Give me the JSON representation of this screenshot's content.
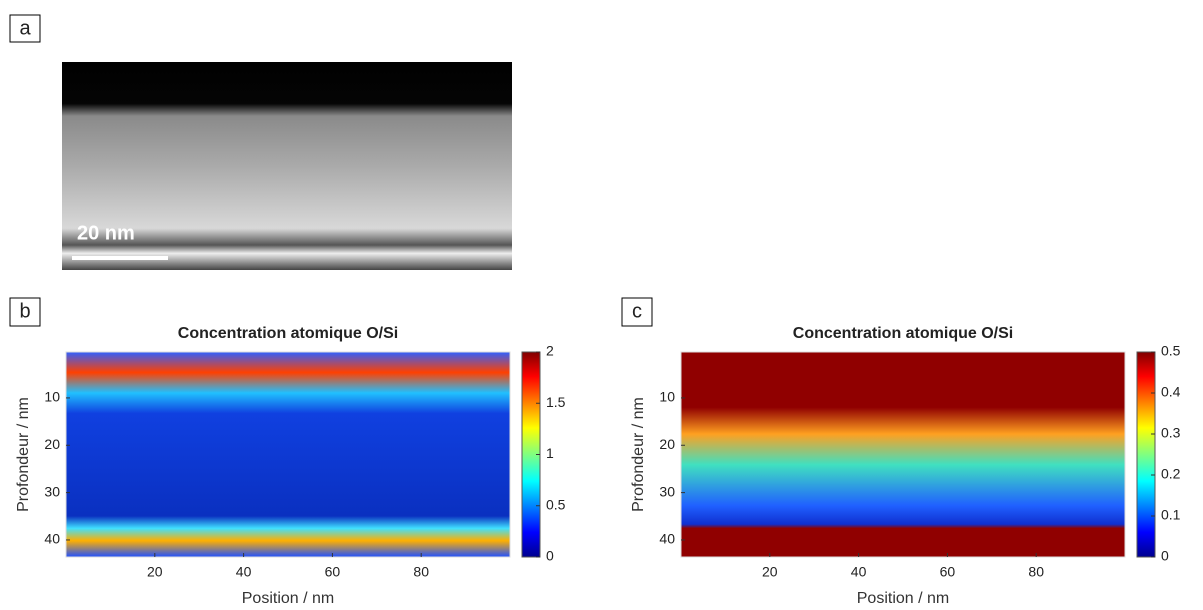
{
  "panels": [
    "a",
    "b",
    "c"
  ],
  "scale_bar": "20 nm",
  "chart_data": [
    {
      "type": "heatmap",
      "title": "Concentration atomique O/Si",
      "x_label": "Position  /  nm",
      "y_label": "Profondeur  /  nm",
      "xlim": [
        0,
        100
      ],
      "ylim": [
        0.3,
        43.6
      ],
      "xticks": [
        20,
        40,
        60,
        80
      ],
      "yticks": [
        10,
        20,
        30,
        40
      ],
      "clim": [
        0,
        2
      ],
      "cticks": [
        0,
        0.5,
        1,
        1.5,
        2
      ],
      "colormap": "jet"
    },
    {
      "type": "heatmap",
      "title": "Concentration atomique O/Si",
      "x_label": "Position  /  nm",
      "y_label": "Profondeur  /  nm",
      "xlim": [
        0,
        100
      ],
      "ylim": [
        0.3,
        43.6
      ],
      "xticks": [
        20,
        40,
        60,
        80
      ],
      "yticks": [
        10,
        20,
        30,
        40
      ],
      "clim": [
        0,
        0.5
      ],
      "cticks": [
        0,
        0.1,
        0.2,
        0.3,
        0.4,
        0.5
      ],
      "colormap": "jet"
    }
  ]
}
